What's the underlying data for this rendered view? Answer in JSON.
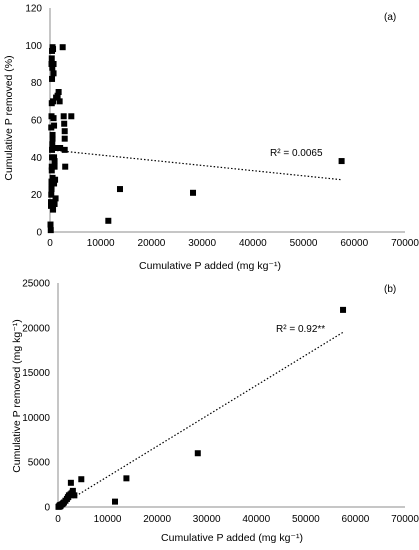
{
  "chart_data": [
    {
      "type": "scatter",
      "panel": "(a)",
      "xlabel": "Cumulative P added (mg kg⁻¹)",
      "ylabel": "Cumulative P removed (%)",
      "xlim": [
        0,
        70000
      ],
      "ylim": [
        0,
        120
      ],
      "xticks": [
        "0",
        "10000",
        "20000",
        "30000",
        "40000",
        "50000",
        "60000",
        "70000"
      ],
      "yticks": [
        "0",
        "20",
        "40",
        "60",
        "80",
        "100",
        "120"
      ],
      "annotation": "R² = 0.0065",
      "trendline": {
        "x": [
          0,
          57500
        ],
        "y": [
          44,
          28
        ],
        "style": "dotted"
      },
      "points": [
        [
          100,
          4
        ],
        [
          150,
          1
        ],
        [
          200,
          14
        ],
        [
          200,
          16
        ],
        [
          250,
          20
        ],
        [
          300,
          24
        ],
        [
          300,
          27
        ],
        [
          350,
          33
        ],
        [
          350,
          35
        ],
        [
          400,
          40
        ],
        [
          400,
          44
        ],
        [
          450,
          47
        ],
        [
          500,
          50
        ],
        [
          500,
          52
        ],
        [
          250,
          56
        ],
        [
          300,
          62
        ],
        [
          350,
          69
        ],
        [
          400,
          82
        ],
        [
          450,
          88
        ],
        [
          300,
          90
        ],
        [
          350,
          93
        ],
        [
          400,
          97
        ],
        [
          500,
          99
        ],
        [
          600,
          98
        ],
        [
          700,
          90
        ],
        [
          700,
          85
        ],
        [
          600,
          70
        ],
        [
          700,
          61
        ],
        [
          800,
          57
        ],
        [
          900,
          45
        ],
        [
          800,
          40
        ],
        [
          900,
          38
        ],
        [
          1000,
          28
        ],
        [
          1100,
          18
        ],
        [
          600,
          12
        ],
        [
          900,
          15
        ],
        [
          900,
          35
        ],
        [
          800,
          26
        ],
        [
          500,
          29
        ],
        [
          300,
          23
        ],
        [
          1200,
          72
        ],
        [
          1500,
          73
        ],
        [
          1700,
          75
        ],
        [
          1900,
          70
        ],
        [
          2500,
          99
        ],
        [
          2000,
          45
        ],
        [
          2700,
          62
        ],
        [
          2800,
          58
        ],
        [
          2900,
          54
        ],
        [
          2900,
          50
        ],
        [
          2900,
          44
        ],
        [
          3000,
          35
        ],
        [
          4200,
          62
        ],
        [
          11500,
          6
        ],
        [
          13800,
          23
        ],
        [
          28200,
          21
        ],
        [
          57500,
          38
        ]
      ]
    },
    {
      "type": "scatter",
      "panel": "(b)",
      "xlabel": "Cumulative P added (mg kg⁻¹)",
      "ylabel": "Cumulative P removed (mg kg⁻¹)",
      "xlim": [
        0,
        70000
      ],
      "ylim": [
        0,
        25000
      ],
      "xticks": [
        "0",
        "10000",
        "20000",
        "30000",
        "40000",
        "50000",
        "60000",
        "70000"
      ],
      "yticks": [
        "0",
        "5000",
        "10000",
        "15000",
        "20000",
        "25000"
      ],
      "annotation": "R² = 0.92**",
      "trendline": {
        "x": [
          0,
          57500
        ],
        "y": [
          0,
          19500
        ],
        "style": "dotted"
      },
      "points": [
        [
          100,
          20
        ],
        [
          200,
          40
        ],
        [
          300,
          60
        ],
        [
          400,
          80
        ],
        [
          500,
          100
        ],
        [
          300,
          150
        ],
        [
          400,
          200
        ],
        [
          600,
          250
        ],
        [
          800,
          300
        ],
        [
          1000,
          400
        ],
        [
          1200,
          500
        ],
        [
          1500,
          700
        ],
        [
          1800,
          900
        ],
        [
          2000,
          1100
        ],
        [
          2200,
          1300
        ],
        [
          2500,
          1400
        ],
        [
          2700,
          1500
        ],
        [
          2900,
          1600
        ],
        [
          3000,
          1800
        ],
        [
          2600,
          2700
        ],
        [
          3300,
          1300
        ],
        [
          4700,
          3100
        ],
        [
          11500,
          600
        ],
        [
          13800,
          3200
        ],
        [
          28200,
          6000
        ],
        [
          57500,
          22000
        ]
      ]
    }
  ]
}
